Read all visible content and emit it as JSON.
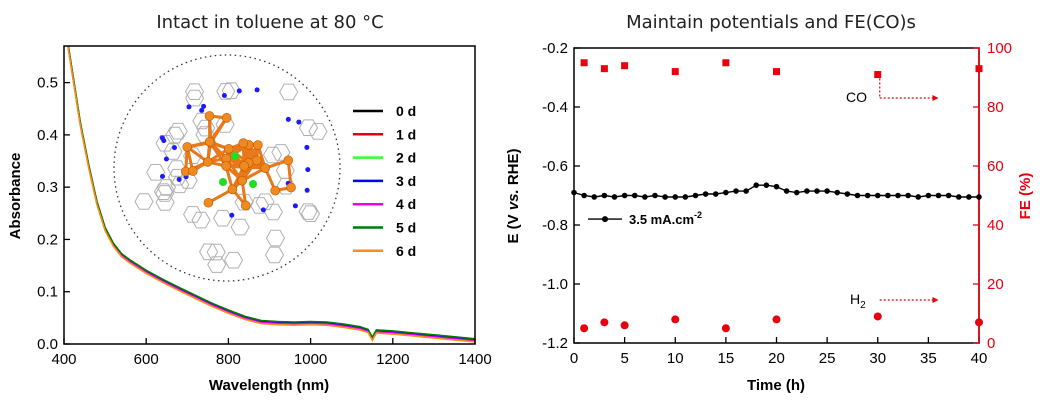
{
  "chart_data": [
    {
      "type": "line",
      "title": "Intact in toluene at 80 °C",
      "xlabel": "Wavelength (nm)",
      "ylabel": "Absorbance",
      "xlim": [
        400,
        1400
      ],
      "ylim": [
        0.0,
        0.57
      ],
      "x_ticks": [
        "400",
        "600",
        "800",
        "1000",
        "1200",
        "1400"
      ],
      "y_ticks": [
        "0.0",
        "0.1",
        "0.2",
        "0.3",
        "0.4",
        "0.5"
      ],
      "legend_placement": "center-right",
      "series": [
        {
          "name": "0 d",
          "color": "#000000",
          "offset": 0.0
        },
        {
          "name": "1 d",
          "color": "#e8000f",
          "offset": 0.002
        },
        {
          "name": "2 d",
          "color": "#33ff33",
          "offset": -0.002
        },
        {
          "name": "3 d",
          "color": "#0000ff",
          "offset": 0.001
        },
        {
          "name": "4 d",
          "color": "#ee00ee",
          "offset": -0.001
        },
        {
          "name": "5 d",
          "color": "#007a00",
          "offset": 0.003
        },
        {
          "name": "6 d",
          "color": "#ff8c1a",
          "offset": -0.003
        }
      ],
      "x": [
        400,
        420,
        440,
        460,
        480,
        500,
        520,
        540,
        560,
        580,
        600,
        640,
        680,
        720,
        760,
        800,
        840,
        880,
        920,
        960,
        1000,
        1040,
        1080,
        1120,
        1140,
        1150,
        1160,
        1200,
        1240,
        1280,
        1320,
        1360,
        1400
      ],
      "y": [
        0.62,
        0.52,
        0.42,
        0.34,
        0.27,
        0.22,
        0.19,
        0.17,
        0.158,
        0.148,
        0.138,
        0.121,
        0.105,
        0.09,
        0.075,
        0.062,
        0.05,
        0.042,
        0.04,
        0.039,
        0.04,
        0.039,
        0.035,
        0.03,
        0.025,
        0.01,
        0.024,
        0.022,
        0.019,
        0.016,
        0.013,
        0.01,
        0.007
      ],
      "inset": "molecular cluster structure"
    },
    {
      "type": "scatter",
      "title": "Maintain potentials and FE(CO)s",
      "xlabel": "Time (h)",
      "ylabel_left": "E (V vs. RHE)",
      "ylabel_right": "FE (%)",
      "xlim": [
        0,
        40
      ],
      "ylim_left": [
        -1.2,
        -0.2
      ],
      "ylim_right": [
        0,
        100
      ],
      "x_ticks": [
        "0",
        "5",
        "10",
        "15",
        "20",
        "25",
        "30",
        "35",
        "40"
      ],
      "y_ticks_left": [
        "-0.2",
        "-0.4",
        "-0.6",
        "-0.8",
        "-1.0",
        "-1.2"
      ],
      "y_ticks_right": [
        "0",
        "20",
        "40",
        "60",
        "80",
        "100"
      ],
      "potential": {
        "name": "3.5 mA.cm",
        "superscript": "-2",
        "color": "#000000",
        "x": [
          0,
          1,
          2,
          3,
          4,
          5,
          6,
          7,
          8,
          9,
          10,
          11,
          12,
          13,
          14,
          15,
          16,
          17,
          18,
          19,
          20,
          21,
          22,
          23,
          24,
          25,
          26,
          27,
          28,
          29,
          30,
          31,
          32,
          33,
          34,
          35,
          36,
          37,
          38,
          39,
          40
        ],
        "values": [
          -0.69,
          -0.7,
          -0.705,
          -0.7,
          -0.705,
          -0.7,
          -0.7,
          -0.705,
          -0.7,
          -0.705,
          -0.705,
          -0.705,
          -0.7,
          -0.695,
          -0.695,
          -0.69,
          -0.685,
          -0.685,
          -0.665,
          -0.665,
          -0.67,
          -0.685,
          -0.69,
          -0.685,
          -0.685,
          -0.685,
          -0.69,
          -0.695,
          -0.7,
          -0.7,
          -0.7,
          -0.7,
          -0.7,
          -0.7,
          -0.705,
          -0.7,
          -0.7,
          -0.7,
          -0.705,
          -0.705,
          -0.705
        ]
      },
      "fe_co": {
        "label": "CO",
        "color": "#e8000f",
        "x": [
          1,
          3,
          5,
          10,
          15,
          20,
          30,
          40
        ],
        "values": [
          95,
          93,
          94,
          92,
          95,
          92,
          91,
          93
        ]
      },
      "fe_h2": {
        "label": "H",
        "subscript": "2",
        "color": "#e8000f",
        "x": [
          1,
          3,
          5,
          10,
          15,
          20,
          30,
          40
        ],
        "values": [
          5,
          7,
          6,
          8,
          5,
          8,
          9,
          7
        ]
      }
    }
  ]
}
